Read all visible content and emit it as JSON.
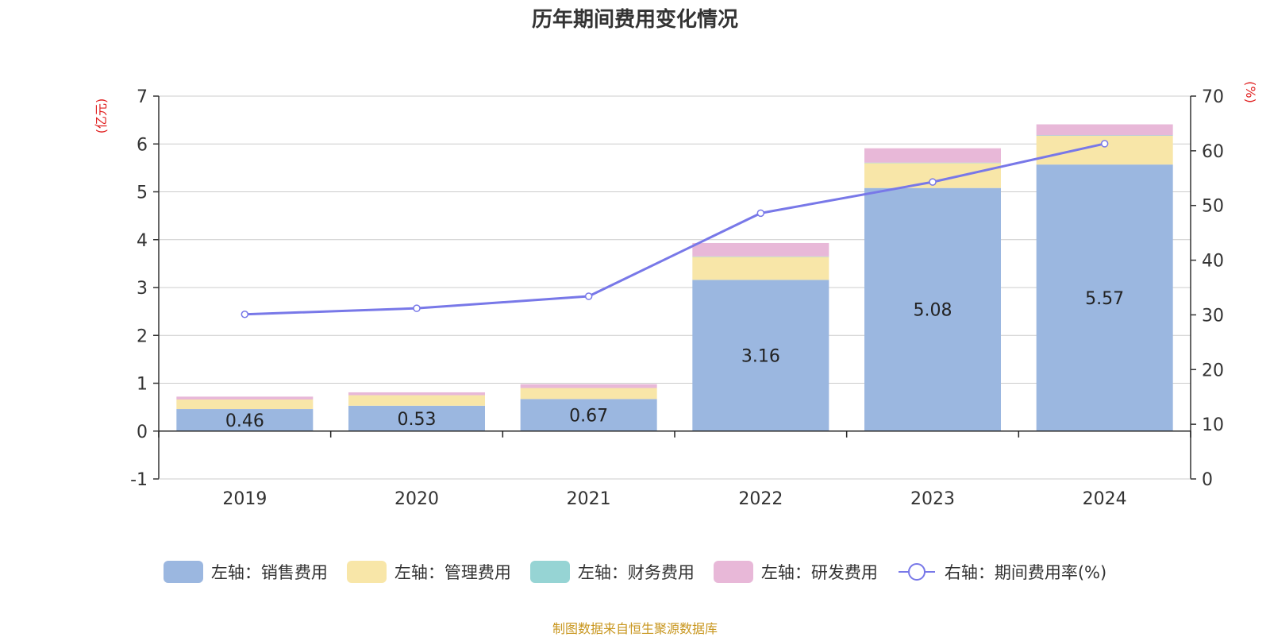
{
  "chart_data": {
    "type": "bar",
    "title": "历年期间费用变化情况",
    "categories": [
      "2019",
      "2020",
      "2021",
      "2022",
      "2023",
      "2024"
    ],
    "left_axis": {
      "unit_label": "(亿元)",
      "min": -1,
      "max": 7,
      "ticks": [
        -1,
        0,
        1,
        2,
        3,
        4,
        5,
        6,
        7
      ]
    },
    "right_axis": {
      "unit_label": "(%)",
      "min": 0,
      "max": 70,
      "ticks": [
        0,
        10,
        20,
        30,
        40,
        50,
        60,
        70
      ]
    },
    "series": [
      {
        "name": "左轴：销售费用",
        "kind": "bar",
        "color": "#9bb7e0",
        "values": [
          0.46,
          0.53,
          0.67,
          3.16,
          5.08,
          5.57
        ],
        "show_labels": true
      },
      {
        "name": "左轴：管理费用",
        "kind": "bar",
        "color": "#f8e6a8",
        "values": [
          0.2,
          0.22,
          0.23,
          0.48,
          0.52,
          0.6
        ],
        "show_labels": false
      },
      {
        "name": "左轴：财务费用",
        "kind": "bar",
        "color": "#96d4d4",
        "values": [
          0,
          0,
          0,
          0.01,
          0.01,
          0.01
        ],
        "show_labels": false
      },
      {
        "name": "左轴：研发费用",
        "kind": "bar",
        "color": "#e8b8d8",
        "values": [
          0.06,
          0.06,
          0.08,
          0.28,
          0.3,
          0.23
        ],
        "show_labels": false
      },
      {
        "name": "右轴：期间费用率(%)",
        "kind": "line",
        "color": "#7878e8",
        "values": [
          30.1,
          31.2,
          33.4,
          48.6,
          54.3,
          61.3
        ]
      }
    ],
    "grid": true,
    "legend_position": "bottom"
  },
  "source_note": "制图数据来自恒生聚源数据库"
}
